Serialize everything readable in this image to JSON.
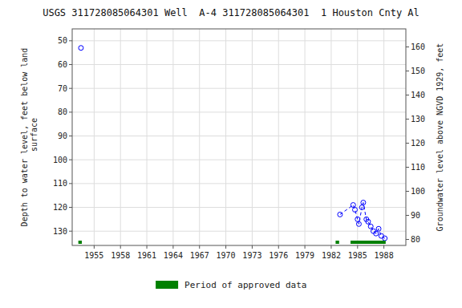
{
  "chart_data": {
    "type": "scatter",
    "title": "USGS 311728085064301 Well  A-4 311728085064301  1 Houston Cnty Al",
    "ylabel": "Depth to water level, feet below land\n surface",
    "y2label": "Groundwater level above NGVD 1929, feet",
    "xlim": [
      1952.5,
      1990.5
    ],
    "ylim": [
      136,
      45
    ],
    "y2lim": [
      77.5,
      167.5
    ],
    "xticks": [
      1955,
      1958,
      1961,
      1964,
      1967,
      1970,
      1973,
      1976,
      1979,
      1982,
      1985,
      1988
    ],
    "yticks": [
      50,
      60,
      70,
      80,
      90,
      100,
      110,
      120,
      130
    ],
    "y2ticks": [
      160,
      150,
      140,
      130,
      120,
      110,
      100,
      90,
      80
    ],
    "grid": true,
    "series": [
      {
        "type": "scatter",
        "marker": "circle",
        "color": "#0000ff",
        "x": [
          1953.5,
          1983.0,
          1984.5,
          1984.7,
          1985.0,
          1985.15,
          1985.5,
          1985.65,
          1986.0,
          1986.2,
          1986.5,
          1986.8,
          1987.1,
          1987.4,
          1987.7,
          1988.1
        ],
        "values": [
          53,
          123,
          119,
          121,
          125,
          127,
          120,
          118,
          125,
          126,
          128,
          130,
          131,
          129,
          132,
          133
        ]
      },
      {
        "type": "line",
        "line_style": "dashed",
        "color": "#0000ff",
        "x": [
          1983.0,
          1984.5,
          1984.7,
          1985.0,
          1985.15,
          1985.5,
          1985.65,
          1986.0,
          1986.2,
          1986.5,
          1986.8,
          1987.1,
          1987.4,
          1987.7,
          1988.1
        ],
        "values": [
          123,
          119,
          121,
          125,
          127,
          120,
          118,
          125,
          126,
          128,
          130,
          131,
          129,
          132,
          133
        ]
      },
      {
        "type": "span",
        "name": "Period of approved data",
        "color": "#008000",
        "periods": [
          [
            1953.2,
            1953.6
          ],
          [
            1982.5,
            1982.9
          ],
          [
            1984.2,
            1988.2
          ]
        ]
      }
    ]
  }
}
